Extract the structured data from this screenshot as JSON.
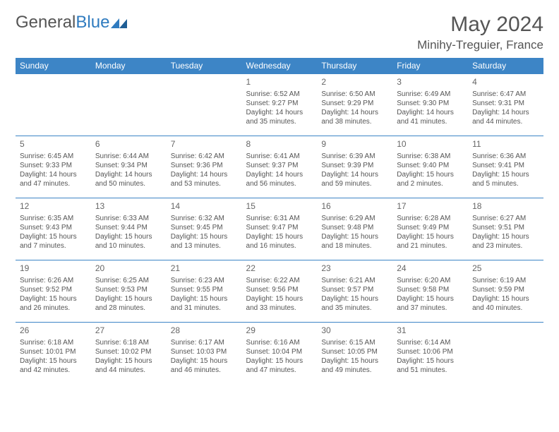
{
  "logo": {
    "text1": "General",
    "text2": "Blue"
  },
  "title": "May 2024",
  "location": "Minihy-Treguier, France",
  "colors": {
    "header_bg": "#3d85c6",
    "header_text": "#ffffff",
    "text": "#555555",
    "row_border": "#3d85c6"
  },
  "weekdays": [
    "Sunday",
    "Monday",
    "Tuesday",
    "Wednesday",
    "Thursday",
    "Friday",
    "Saturday"
  ],
  "weeks": [
    [
      null,
      null,
      null,
      {
        "n": "1",
        "sr": "Sunrise: 6:52 AM",
        "ss": "Sunset: 9:27 PM",
        "dl": "Daylight: 14 hours and 35 minutes."
      },
      {
        "n": "2",
        "sr": "Sunrise: 6:50 AM",
        "ss": "Sunset: 9:29 PM",
        "dl": "Daylight: 14 hours and 38 minutes."
      },
      {
        "n": "3",
        "sr": "Sunrise: 6:49 AM",
        "ss": "Sunset: 9:30 PM",
        "dl": "Daylight: 14 hours and 41 minutes."
      },
      {
        "n": "4",
        "sr": "Sunrise: 6:47 AM",
        "ss": "Sunset: 9:31 PM",
        "dl": "Daylight: 14 hours and 44 minutes."
      }
    ],
    [
      {
        "n": "5",
        "sr": "Sunrise: 6:45 AM",
        "ss": "Sunset: 9:33 PM",
        "dl": "Daylight: 14 hours and 47 minutes."
      },
      {
        "n": "6",
        "sr": "Sunrise: 6:44 AM",
        "ss": "Sunset: 9:34 PM",
        "dl": "Daylight: 14 hours and 50 minutes."
      },
      {
        "n": "7",
        "sr": "Sunrise: 6:42 AM",
        "ss": "Sunset: 9:36 PM",
        "dl": "Daylight: 14 hours and 53 minutes."
      },
      {
        "n": "8",
        "sr": "Sunrise: 6:41 AM",
        "ss": "Sunset: 9:37 PM",
        "dl": "Daylight: 14 hours and 56 minutes."
      },
      {
        "n": "9",
        "sr": "Sunrise: 6:39 AM",
        "ss": "Sunset: 9:39 PM",
        "dl": "Daylight: 14 hours and 59 minutes."
      },
      {
        "n": "10",
        "sr": "Sunrise: 6:38 AM",
        "ss": "Sunset: 9:40 PM",
        "dl": "Daylight: 15 hours and 2 minutes."
      },
      {
        "n": "11",
        "sr": "Sunrise: 6:36 AM",
        "ss": "Sunset: 9:41 PM",
        "dl": "Daylight: 15 hours and 5 minutes."
      }
    ],
    [
      {
        "n": "12",
        "sr": "Sunrise: 6:35 AM",
        "ss": "Sunset: 9:43 PM",
        "dl": "Daylight: 15 hours and 7 minutes."
      },
      {
        "n": "13",
        "sr": "Sunrise: 6:33 AM",
        "ss": "Sunset: 9:44 PM",
        "dl": "Daylight: 15 hours and 10 minutes."
      },
      {
        "n": "14",
        "sr": "Sunrise: 6:32 AM",
        "ss": "Sunset: 9:45 PM",
        "dl": "Daylight: 15 hours and 13 minutes."
      },
      {
        "n": "15",
        "sr": "Sunrise: 6:31 AM",
        "ss": "Sunset: 9:47 PM",
        "dl": "Daylight: 15 hours and 16 minutes."
      },
      {
        "n": "16",
        "sr": "Sunrise: 6:29 AM",
        "ss": "Sunset: 9:48 PM",
        "dl": "Daylight: 15 hours and 18 minutes."
      },
      {
        "n": "17",
        "sr": "Sunrise: 6:28 AM",
        "ss": "Sunset: 9:49 PM",
        "dl": "Daylight: 15 hours and 21 minutes."
      },
      {
        "n": "18",
        "sr": "Sunrise: 6:27 AM",
        "ss": "Sunset: 9:51 PM",
        "dl": "Daylight: 15 hours and 23 minutes."
      }
    ],
    [
      {
        "n": "19",
        "sr": "Sunrise: 6:26 AM",
        "ss": "Sunset: 9:52 PM",
        "dl": "Daylight: 15 hours and 26 minutes."
      },
      {
        "n": "20",
        "sr": "Sunrise: 6:25 AM",
        "ss": "Sunset: 9:53 PM",
        "dl": "Daylight: 15 hours and 28 minutes."
      },
      {
        "n": "21",
        "sr": "Sunrise: 6:23 AM",
        "ss": "Sunset: 9:55 PM",
        "dl": "Daylight: 15 hours and 31 minutes."
      },
      {
        "n": "22",
        "sr": "Sunrise: 6:22 AM",
        "ss": "Sunset: 9:56 PM",
        "dl": "Daylight: 15 hours and 33 minutes."
      },
      {
        "n": "23",
        "sr": "Sunrise: 6:21 AM",
        "ss": "Sunset: 9:57 PM",
        "dl": "Daylight: 15 hours and 35 minutes."
      },
      {
        "n": "24",
        "sr": "Sunrise: 6:20 AM",
        "ss": "Sunset: 9:58 PM",
        "dl": "Daylight: 15 hours and 37 minutes."
      },
      {
        "n": "25",
        "sr": "Sunrise: 6:19 AM",
        "ss": "Sunset: 9:59 PM",
        "dl": "Daylight: 15 hours and 40 minutes."
      }
    ],
    [
      {
        "n": "26",
        "sr": "Sunrise: 6:18 AM",
        "ss": "Sunset: 10:01 PM",
        "dl": "Daylight: 15 hours and 42 minutes."
      },
      {
        "n": "27",
        "sr": "Sunrise: 6:18 AM",
        "ss": "Sunset: 10:02 PM",
        "dl": "Daylight: 15 hours and 44 minutes."
      },
      {
        "n": "28",
        "sr": "Sunrise: 6:17 AM",
        "ss": "Sunset: 10:03 PM",
        "dl": "Daylight: 15 hours and 46 minutes."
      },
      {
        "n": "29",
        "sr": "Sunrise: 6:16 AM",
        "ss": "Sunset: 10:04 PM",
        "dl": "Daylight: 15 hours and 47 minutes."
      },
      {
        "n": "30",
        "sr": "Sunrise: 6:15 AM",
        "ss": "Sunset: 10:05 PM",
        "dl": "Daylight: 15 hours and 49 minutes."
      },
      {
        "n": "31",
        "sr": "Sunrise: 6:14 AM",
        "ss": "Sunset: 10:06 PM",
        "dl": "Daylight: 15 hours and 51 minutes."
      },
      null
    ]
  ]
}
